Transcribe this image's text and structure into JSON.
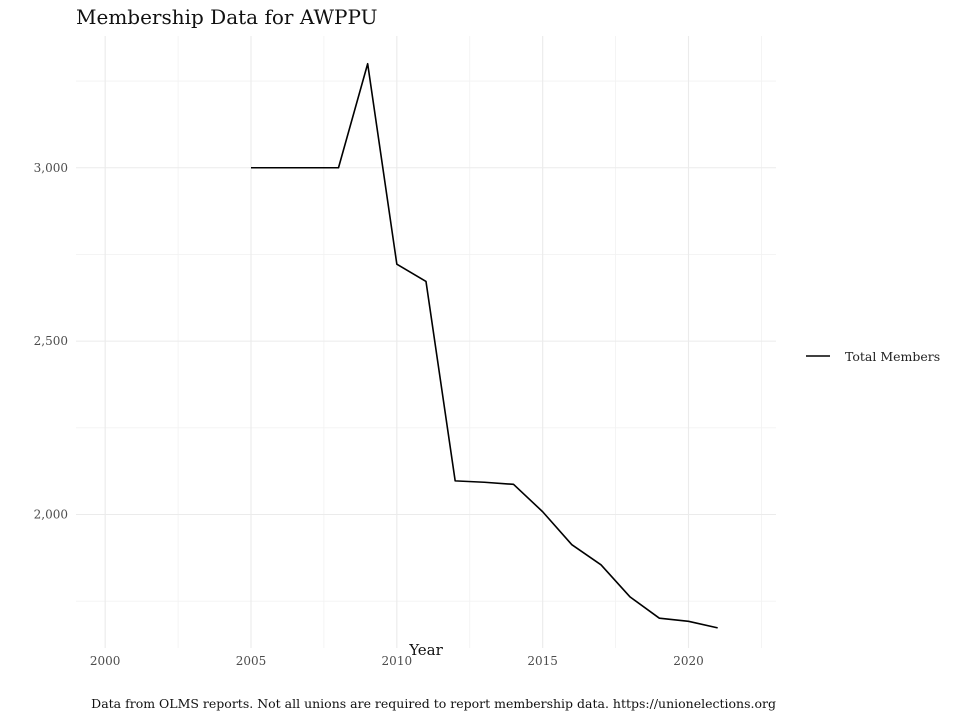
{
  "chart_data": {
    "type": "line",
    "title": "Membership Data for AWPPU",
    "xlabel": "Year",
    "ylabel": "",
    "caption": "Data from OLMS reports. Not all unions are required to report membership data. https://unionelections.org",
    "xlim": [
      1999,
      2023
    ],
    "ylim": [
      1615,
      3380
    ],
    "grid": true,
    "legend_position": "right",
    "x_ticks": [
      2000,
      2005,
      2010,
      2015,
      2020
    ],
    "x_tick_labels": [
      "2000",
      "2005",
      "2010",
      "2015",
      "2020"
    ],
    "y_ticks": [
      2000,
      2500,
      3000
    ],
    "y_tick_labels": [
      "2,000",
      "2,500",
      "3,000"
    ],
    "series": [
      {
        "name": "Total Members",
        "color": "#000000",
        "x": [
          2005,
          2006,
          2007,
          2008,
          2009,
          2010,
          2011,
          2012,
          2013,
          2014,
          2015,
          2016,
          2017,
          2018,
          2019,
          2020,
          2021
        ],
        "values": [
          3000,
          3000,
          3000,
          3000,
          3300,
          2722,
          2672,
          2097,
          2093,
          2087,
          2008,
          1913,
          1855,
          1762,
          1701,
          1692,
          1673
        ]
      }
    ]
  }
}
